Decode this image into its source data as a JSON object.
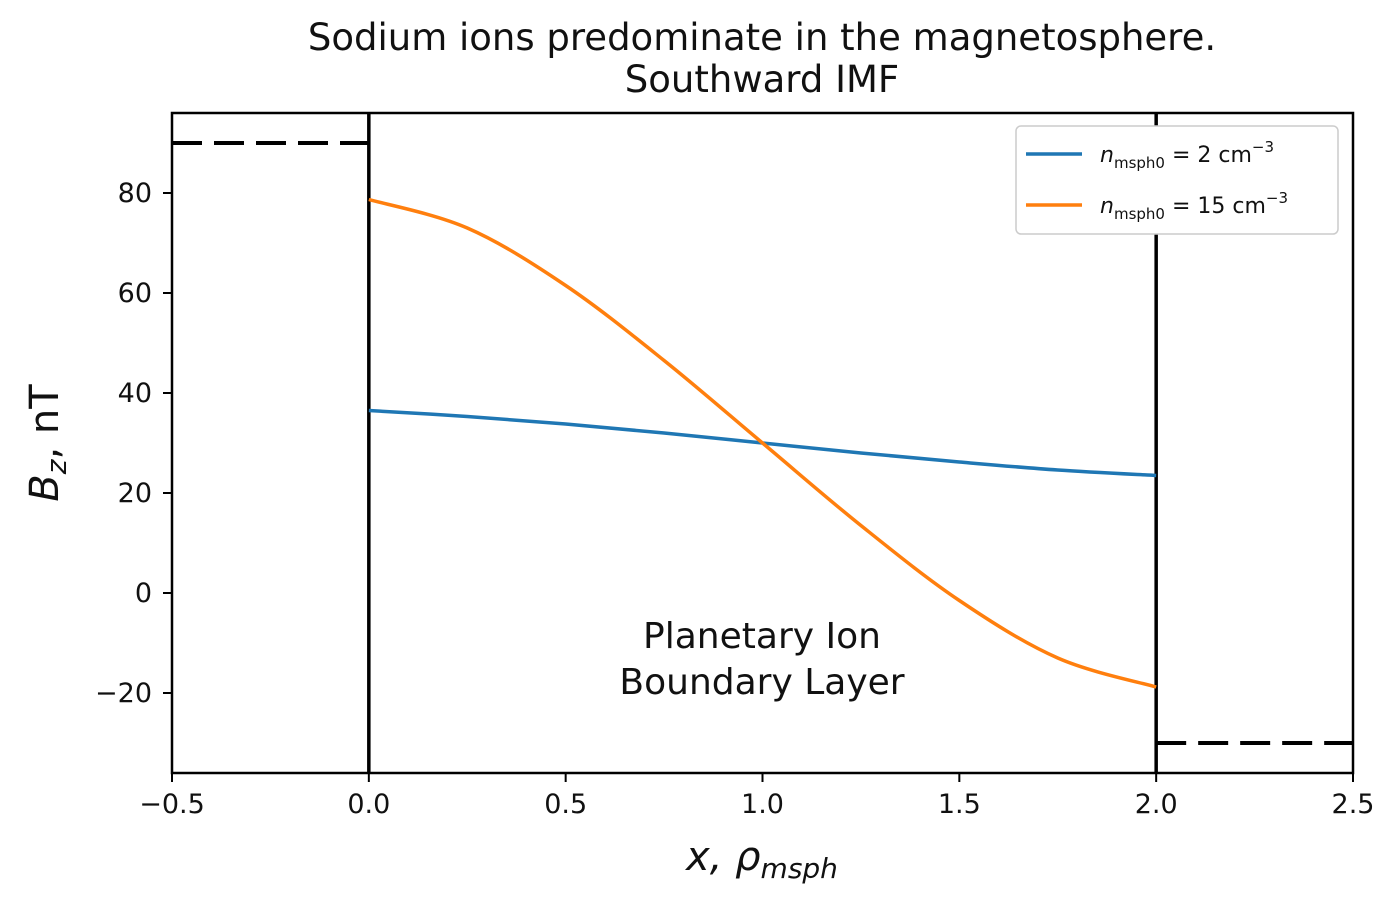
{
  "chart_data": {
    "type": "line",
    "title": "Sodium ions predominate in the magnetosphere.",
    "subtitle": "Southward IMF",
    "xlabel": "x, ρ",
    "xlabel_sub": "msph",
    "ylabel": "B",
    "ylabel_sub": "z",
    "ylabel_suffix": ", nT",
    "xlim": [
      -0.5,
      2.5
    ],
    "ylim": [
      -36,
      96
    ],
    "xticks": [
      -0.5,
      0.0,
      0.5,
      1.0,
      1.5,
      2.0,
      2.5
    ],
    "xtick_labels": [
      "−0.5",
      "0.0",
      "0.5",
      "1.0",
      "1.5",
      "2.0",
      "2.5"
    ],
    "yticks": [
      -20,
      0,
      20,
      40,
      60,
      80
    ],
    "ytick_labels": [
      "−20",
      "0",
      "20",
      "40",
      "60",
      "80"
    ],
    "vertical_lines": [
      0.0,
      2.0
    ],
    "reference_segments": [
      {
        "name": "left-dashed-level",
        "x": [
          -0.5,
          0.0
        ],
        "y": 90
      },
      {
        "name": "right-dashed-level",
        "x": [
          2.0,
          2.5
        ],
        "y": -30
      }
    ],
    "annotation": {
      "line1": "Planetary Ion",
      "line2": "Boundary Layer",
      "x": 1.0,
      "y": -9
    },
    "legend_position": "top-right",
    "series": [
      {
        "name": "n_msph0 = 2 cm^-3",
        "legend_main": "n",
        "legend_sub": "msph0",
        "legend_eq": " = 2 cm",
        "legend_sup": "−3",
        "color": "#1f77b4",
        "x": [
          0.0,
          0.25,
          0.5,
          0.75,
          1.0,
          1.25,
          1.5,
          1.75,
          2.0
        ],
        "y": [
          36.5,
          35.3,
          33.8,
          32.0,
          30.0,
          28.0,
          26.2,
          24.6,
          23.5
        ]
      },
      {
        "name": "n_msph0 = 15 cm^-3",
        "legend_main": "n",
        "legend_sub": "msph0",
        "legend_eq": " = 15 cm",
        "legend_sup": "−3",
        "color": "#ff7f0e",
        "x": [
          0.0,
          0.25,
          0.5,
          0.75,
          1.0,
          1.25,
          1.5,
          1.75,
          2.0
        ],
        "y": [
          78.7,
          73.0,
          61.5,
          46.5,
          30.0,
          13.5,
          -1.5,
          -13.0,
          -18.8
        ]
      }
    ]
  }
}
